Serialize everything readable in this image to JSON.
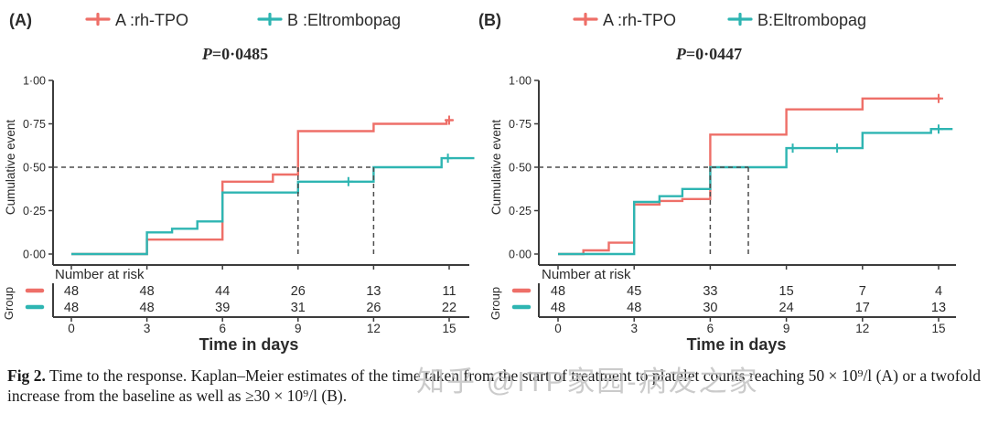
{
  "colors": {
    "rh_tpo": "#ee6f68",
    "eltrombopag": "#2eb5b2",
    "axis": "#3c3c3c",
    "dashed": "#4d4d4d"
  },
  "watermark": "知乎 @ITP家园-病友之家",
  "caption": {
    "label": "Fig 2.",
    "text": " Time to the response. Kaplan–Meier estimates of the time taken from the start of treatment to platelet counts reaching 50 × 10⁹/l (A) or a twofold increase from the baseline as well as ≥30 × 10⁹/l (B)."
  },
  "panels": [
    {
      "label": "(A)",
      "legend": [
        "A :rh-TPO",
        "B :Eltrombopag"
      ],
      "p_italic": "P",
      "p_rest": "=0·0485",
      "y_axis_label": "Cumulative event",
      "y_ticks": [
        "1·00",
        "0·75",
        "0·50",
        "0·25",
        "0·00"
      ],
      "x_ticks": [
        "0",
        "3",
        "6",
        "9",
        "12",
        "15"
      ],
      "x_axis_label": "Time in days",
      "risk_header": "Number at risk",
      "group_label": "Group",
      "risk_rows": [
        {
          "group": "rh-TPO",
          "values": [
            "48",
            "48",
            "44",
            "26",
            "13",
            "11"
          ]
        },
        {
          "group": "Eltrombopag",
          "values": [
            "48",
            "48",
            "39",
            "31",
            "26",
            "22"
          ]
        }
      ]
    },
    {
      "label": "(B)",
      "legend": [
        "A :rh-TPO",
        "B:Eltrombopag"
      ],
      "p_italic": "P",
      "p_rest": "=0·0447",
      "y_axis_label": "Cumulative event",
      "y_ticks": [
        "1·00",
        "0·75",
        "0·50",
        "0·25",
        "0·00"
      ],
      "x_ticks": [
        "0",
        "3",
        "6",
        "9",
        "12",
        "15"
      ],
      "x_axis_label": "Time in days",
      "risk_header": "Number at risk",
      "group_label": "Group",
      "risk_rows": [
        {
          "group": "rh-TPO",
          "values": [
            "48",
            "45",
            "33",
            "15",
            "7",
            "4"
          ]
        },
        {
          "group": "Eltrombopag",
          "values": [
            "48",
            "48",
            "30",
            "24",
            "17",
            "13"
          ]
        }
      ]
    }
  ],
  "chart_data": [
    {
      "type": "line",
      "subtype": "kaplan-meier-cumulative-event",
      "panel": "A",
      "title": "P=0·0485",
      "xlabel": "Time in days",
      "ylabel": "Cumulative event",
      "xlim": [
        0,
        15
      ],
      "ylim": [
        0,
        1
      ],
      "x_ticks": [
        0,
        3,
        6,
        9,
        12,
        15
      ],
      "y_tick_vals": [
        0,
        0.25,
        0.5,
        0.75,
        1.0
      ],
      "grid": false,
      "legend_position": "top",
      "series": [
        {
          "name": "A :rh-TPO",
          "color_key": "rh_tpo",
          "steps": [
            [
              0,
              0
            ],
            [
              3,
              0.083
            ],
            [
              6,
              0.417
            ],
            [
              8,
              0.458
            ],
            [
              9,
              0.708
            ],
            [
              12,
              0.75
            ],
            [
              14.9,
              0.771
            ]
          ],
          "end_day": 15.15,
          "censors": [
            [
              15,
              0.771
            ]
          ]
        },
        {
          "name": "B :Eltrombopag",
          "color_key": "eltrombopag",
          "steps": [
            [
              0,
              0
            ],
            [
              3,
              0.125
            ],
            [
              4,
              0.146
            ],
            [
              5,
              0.188
            ],
            [
              6,
              0.354
            ],
            [
              9,
              0.417
            ],
            [
              12,
              0.5
            ],
            [
              14.7,
              0.552
            ]
          ],
          "end_day": 16.0,
          "censors": [
            [
              11,
              0.417
            ],
            [
              14.95,
              0.552
            ]
          ]
        }
      ],
      "median_lines": {
        "h_y": 0.5,
        "h_end_day": 12,
        "verticals": [
          9,
          12
        ]
      },
      "number_at_risk": {
        "times": [
          0,
          3,
          6,
          9,
          12,
          15
        ],
        "rh_tpo": [
          48,
          48,
          44,
          26,
          13,
          11
        ],
        "eltrombopag": [
          48,
          48,
          39,
          31,
          26,
          22
        ]
      }
    },
    {
      "type": "line",
      "subtype": "kaplan-meier-cumulative-event",
      "panel": "B",
      "title": "P=0·0447",
      "xlabel": "Time in days",
      "ylabel": "Cumulative event",
      "xlim": [
        0,
        15
      ],
      "ylim": [
        0,
        1
      ],
      "x_ticks": [
        0,
        3,
        6,
        9,
        12,
        15
      ],
      "y_tick_vals": [
        0,
        0.25,
        0.5,
        0.75,
        1.0
      ],
      "grid": false,
      "legend_position": "top",
      "series": [
        {
          "name": "A :rh-TPO",
          "color_key": "rh_tpo",
          "steps": [
            [
              0,
              0
            ],
            [
              1,
              0.021
            ],
            [
              2,
              0.065
            ],
            [
              3,
              0.285
            ],
            [
              4,
              0.306
            ],
            [
              4.9,
              0.317
            ],
            [
              6,
              0.688
            ],
            [
              9,
              0.833
            ],
            [
              12,
              0.896
            ]
          ],
          "end_day": 15.1,
          "censors": [
            [
              15,
              0.896
            ]
          ]
        },
        {
          "name": "B:Eltrombopag",
          "color_key": "eltrombopag",
          "steps": [
            [
              0,
              0
            ],
            [
              3,
              0.3
            ],
            [
              4,
              0.333
            ],
            [
              4.9,
              0.375
            ],
            [
              6,
              0.5
            ],
            [
              9,
              0.61
            ],
            [
              12,
              0.698
            ],
            [
              14.7,
              0.72
            ]
          ],
          "end_day": 15.55,
          "censors": [
            [
              9.25,
              0.61
            ],
            [
              11,
              0.61
            ],
            [
              15,
              0.72
            ]
          ]
        }
      ],
      "median_lines": {
        "h_y": 0.5,
        "h_end_day": 7.5,
        "verticals": [
          6,
          7.5
        ]
      },
      "number_at_risk": {
        "times": [
          0,
          3,
          6,
          9,
          12,
          15
        ],
        "rh_tpo": [
          48,
          45,
          33,
          15,
          7,
          4
        ],
        "eltrombopag": [
          48,
          48,
          30,
          24,
          17,
          13
        ]
      }
    }
  ]
}
